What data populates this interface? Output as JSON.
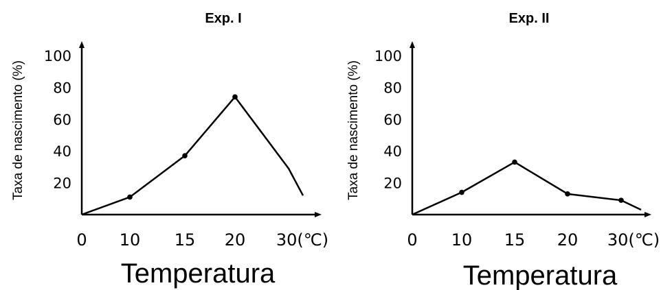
{
  "chart_data": [
    {
      "type": "line",
      "title": "Exp. I",
      "ylabel": "Taxa de nascimento (%)",
      "xlabel": "Temperatura",
      "x_tick_labels": [
        "0",
        "10",
        "15",
        "20",
        "30(℃)"
      ],
      "y_tick_labels": [
        "20",
        "40",
        "60",
        "80",
        "100"
      ],
      "ylim": [
        0,
        110
      ],
      "grid": false,
      "series": [
        {
          "points": [
            {
              "x": "0",
              "y": 0
            },
            {
              "x": "10",
              "y": 11
            },
            {
              "x": "15",
              "y": 37
            },
            {
              "x": "20",
              "y": 74
            },
            {
              "x": "30",
              "y": 29
            },
            {
              "x": "30+",
              "y": 12
            }
          ],
          "markers": [
            false,
            true,
            true,
            true,
            false,
            false
          ]
        }
      ]
    },
    {
      "type": "line",
      "title": "Exp. II",
      "ylabel": "Taxa de nascimento (%)",
      "xlabel": "Temperatura",
      "x_tick_labels": [
        "0",
        "10",
        "15",
        "20",
        "30(℃)"
      ],
      "y_tick_labels": [
        "20",
        "40",
        "60",
        "80",
        "100"
      ],
      "ylim": [
        0,
        110
      ],
      "grid": false,
      "series": [
        {
          "points": [
            {
              "x": "0",
              "y": 0
            },
            {
              "x": "10",
              "y": 14
            },
            {
              "x": "15",
              "y": 33
            },
            {
              "x": "20",
              "y": 13
            },
            {
              "x": "30",
              "y": 9
            },
            {
              "x": "30+",
              "y": 3
            }
          ],
          "markers": [
            false,
            true,
            true,
            true,
            true,
            false
          ]
        }
      ]
    }
  ]
}
